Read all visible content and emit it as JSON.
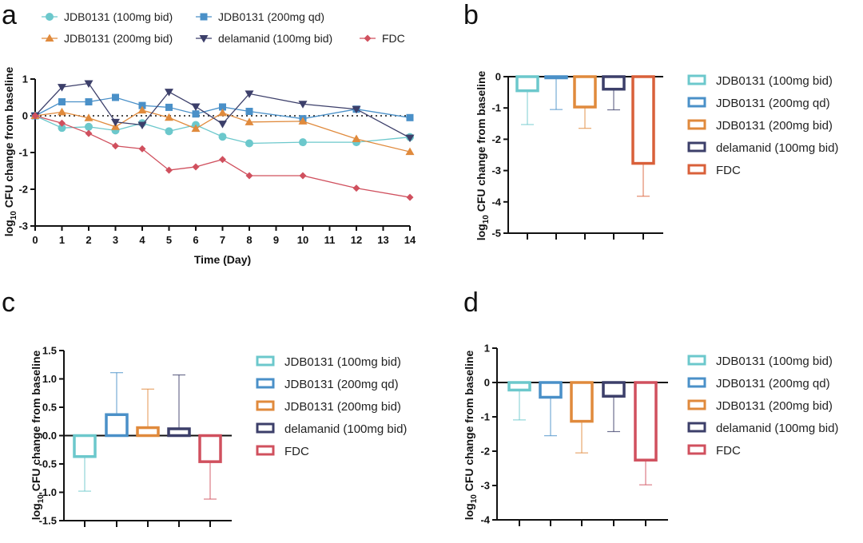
{
  "chart_data": [
    {
      "panel": "a",
      "type": "line",
      "xlabel": "Time (Day)",
      "ylabel": "log10 CFU change from baseline",
      "ylabel_parts": {
        "prefix": "log",
        "sub": "10",
        "suffix": " CFU change from baseline"
      },
      "xlim": [
        0,
        14
      ],
      "ylim": [
        -3,
        1
      ],
      "xticks": [
        "0",
        "1",
        "2",
        "3",
        "4",
        "5",
        "6",
        "7",
        "8",
        "9",
        "10",
        "11",
        "12",
        "13",
        "14"
      ],
      "yticks": [
        "1",
        "0",
        "-1",
        "-2",
        "-3"
      ],
      "reference_line": 0,
      "legend": "top",
      "series": [
        {
          "name": "JDB0131 (100mg bid)",
          "color": "#6cc8cc",
          "marker": "circle",
          "x": [
            0,
            1,
            2,
            3,
            4,
            5,
            6,
            7,
            8,
            10,
            12,
            14
          ],
          "y": [
            0,
            -0.33,
            -0.3,
            -0.4,
            -0.2,
            -0.42,
            -0.25,
            -0.57,
            -0.75,
            -0.72,
            -0.72,
            -0.58
          ]
        },
        {
          "name": "JDB0131 (200mg qd)",
          "color": "#4a90c8",
          "marker": "square",
          "x": [
            0,
            1,
            2,
            3,
            4,
            5,
            6,
            7,
            8,
            10,
            12,
            14
          ],
          "y": [
            0,
            0.38,
            0.38,
            0.5,
            0.28,
            0.23,
            0.05,
            0.24,
            0.12,
            -0.08,
            0.18,
            -0.05
          ]
        },
        {
          "name": "JDB0131 (200mg bid)",
          "color": "#e08a3c",
          "marker": "triangle-up",
          "x": [
            0,
            1,
            2,
            3,
            4,
            5,
            6,
            7,
            8,
            10,
            12,
            14
          ],
          "y": [
            0,
            0.1,
            -0.06,
            -0.3,
            0.15,
            -0.05,
            -0.35,
            0.08,
            -0.17,
            -0.15,
            -0.63,
            -0.98
          ]
        },
        {
          "name": "delamanid (100mg bid)",
          "color": "#3c3f6a",
          "marker": "triangle-down",
          "x": [
            0,
            1,
            2,
            3,
            4,
            5,
            6,
            7,
            8,
            10,
            12,
            14
          ],
          "y": [
            0,
            0.78,
            0.88,
            -0.17,
            -0.25,
            0.65,
            0.25,
            -0.22,
            0.6,
            0.32,
            0.18,
            -0.6
          ]
        },
        {
          "name": "FDC",
          "color": "#d0505e",
          "marker": "diamond",
          "x": [
            0,
            1,
            2,
            3,
            4,
            5,
            6,
            7,
            8,
            10,
            12,
            14
          ],
          "y": [
            0,
            -0.2,
            -0.48,
            -0.82,
            -0.9,
            -1.48,
            -1.39,
            -1.19,
            -1.63,
            -1.63,
            -1.97,
            -2.22
          ]
        }
      ]
    },
    {
      "panel": "b",
      "type": "bar",
      "ylabel": "log10 CFU change from baseline",
      "ylabel_parts": {
        "prefix": "log",
        "sub": "10",
        "suffix": " CFU change from baseline"
      },
      "ylim": [
        -5,
        0
      ],
      "yticks": [
        "0",
        "-1",
        "-2",
        "-3",
        "-4",
        "-5"
      ],
      "legend": "right",
      "categories": [
        "JDB0131 (100mg bid)",
        "JDB0131 (200mg qd)",
        "JDB0131 (200mg bid)",
        "delamanid (100mg bid)",
        "FDC"
      ],
      "colors": [
        "#6cc8cc",
        "#4a90c8",
        "#e08a3c",
        "#3c3f6a",
        "#d9603a"
      ],
      "values": [
        -0.45,
        -0.03,
        -0.97,
        -0.4,
        -2.77
      ],
      "error_bar_ends": [
        -1.53,
        -1.05,
        -1.65,
        -1.06,
        -3.82
      ]
    },
    {
      "panel": "c",
      "type": "bar",
      "ylabel": "log10 CFU change from baseline",
      "ylabel_parts": {
        "prefix": "log",
        "sub": "10",
        "suffix": " CFU change from baseline"
      },
      "ylim": [
        -1.5,
        1.5
      ],
      "yticks": [
        "1.5",
        "1.0",
        "0.5",
        "0.0",
        "-0.5",
        "-1.0",
        "-1.5"
      ],
      "legend": "right",
      "categories": [
        "JDB0131 (100mg bid)",
        "JDB0131 (200mg qd)",
        "JDB0131 (200mg bid)",
        "delamanid (100mg bid)",
        "FDC"
      ],
      "colors": [
        "#6cc8cc",
        "#4a90c8",
        "#e08a3c",
        "#3c3f6a",
        "#d0505e"
      ],
      "values": [
        -0.37,
        0.37,
        0.14,
        0.12,
        -0.46
      ],
      "error_bar_ends": [
        -0.98,
        1.11,
        0.82,
        1.07,
        -1.12
      ]
    },
    {
      "panel": "d",
      "type": "bar",
      "ylabel": "log10 CFU change from baseline",
      "ylabel_parts": {
        "prefix": "log",
        "sub": "10",
        "suffix": " CFU change from baseline"
      },
      "ylim": [
        -4,
        1
      ],
      "yticks": [
        "1",
        "0",
        "-1",
        "-2",
        "-3",
        "-4"
      ],
      "legend": "right",
      "categories": [
        "JDB0131 (100mg bid)",
        "JDB0131 (200mg qd)",
        "JDB0131 (200mg bid)",
        "delamanid (100mg bid)",
        "FDC"
      ],
      "colors": [
        "#6cc8cc",
        "#4a90c8",
        "#e08a3c",
        "#3c3f6a",
        "#d0505e"
      ],
      "values": [
        -0.22,
        -0.43,
        -1.13,
        -0.4,
        -2.26
      ],
      "error_bar_ends": [
        -1.09,
        -1.55,
        -2.05,
        -1.43,
        -2.98
      ]
    }
  ]
}
